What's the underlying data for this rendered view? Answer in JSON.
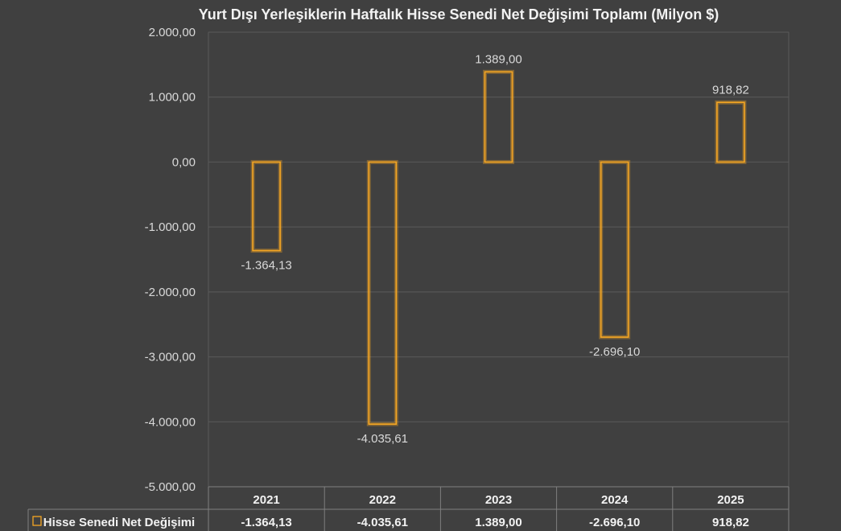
{
  "chart_data": {
    "type": "bar",
    "title": "Yurt Dışı Yerleşiklerin Haftalık Hisse Senedi Net Değişimi Toplamı (Milyon $)",
    "categories": [
      "2021",
      "2022",
      "2023",
      "2024",
      "2025"
    ],
    "series": [
      {
        "name": "Hisse Senedi Net Değişimi",
        "values": [
          -1364.13,
          -4035.61,
          1389.0,
          -2696.1,
          918.82
        ],
        "labels": [
          "-1.364,13",
          "-4.035,61",
          "1.389,00",
          "-2.696,10",
          "918,82"
        ]
      }
    ],
    "ylim": [
      -5000,
      2000
    ],
    "yticks": [
      2000,
      1000,
      0,
      -1000,
      -2000,
      -3000,
      -4000,
      -5000
    ],
    "ytick_labels": [
      "2.000,00",
      "1.000,00",
      "0,00",
      "-1.000,00",
      "-2.000,00",
      "-3.000,00",
      "-4.000,00",
      "-5.000,00"
    ],
    "grid": true,
    "data_table": true,
    "bar_color": "#f5a623",
    "background": "#404040"
  }
}
